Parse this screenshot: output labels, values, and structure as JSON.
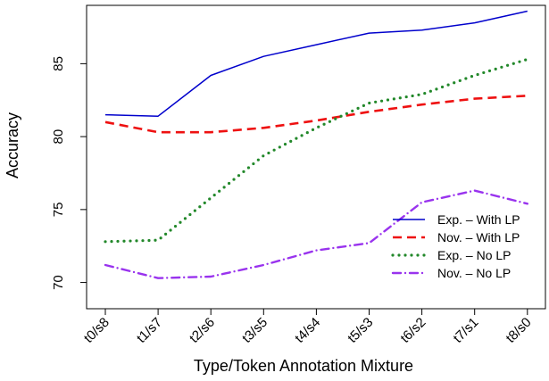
{
  "chart_data": {
    "type": "line",
    "xlabel": "Type/Token Annotation Mixture",
    "ylabel": "Accuracy",
    "categories": [
      "t0/s8",
      "t1/s7",
      "t2/s6",
      "t3/s5",
      "t4/s4",
      "t5/s3",
      "t6/s2",
      "t7/s1",
      "t8/s0"
    ],
    "yticks": [
      70,
      75,
      80,
      85
    ],
    "ylim": [
      68.2,
      89.0
    ],
    "grid": false,
    "legend_position": "bottom-right",
    "series": [
      {
        "name": "Exp. – With LP",
        "color": "#0000cc",
        "dash": "solid",
        "values": [
          81.5,
          81.4,
          84.2,
          85.5,
          86.3,
          87.1,
          87.3,
          87.8,
          88.6
        ]
      },
      {
        "name": "Nov. – With LP",
        "color": "#ee1111",
        "dash": "dashed",
        "values": [
          81.0,
          80.3,
          80.3,
          80.6,
          81.1,
          81.7,
          82.2,
          82.6,
          82.8
        ]
      },
      {
        "name": "Exp. – No LP",
        "color": "#22882a",
        "dash": "dotted",
        "values": [
          72.8,
          72.9,
          75.8,
          78.7,
          80.6,
          82.3,
          82.9,
          84.2,
          85.3
        ]
      },
      {
        "name": "Nov. – No LP",
        "color": "#9933ee",
        "dash": "dashdot",
        "values": [
          71.2,
          70.3,
          70.4,
          71.2,
          72.2,
          72.7,
          75.5,
          76.3,
          75.4
        ]
      }
    ]
  }
}
